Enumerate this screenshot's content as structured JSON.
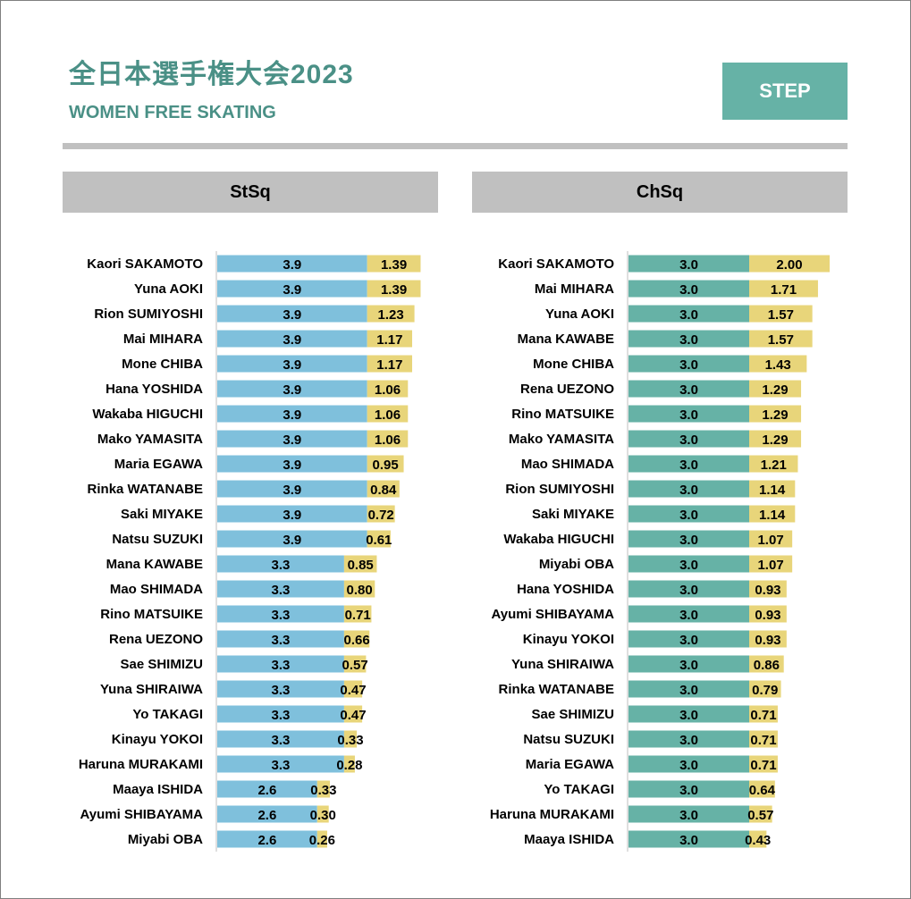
{
  "header": {
    "title": "全日本選手権大会2023",
    "subtitle": "WOMEN FREE SKATING",
    "badge": "STEP"
  },
  "colors": {
    "accent": "#66b2a6",
    "title": "#4a9086",
    "stsq_base": "#7fc0dc",
    "chsq_base": "#66b2a6",
    "goe": "#e8d57a",
    "header_bg": "#c0c0c0"
  },
  "chart_data": [
    {
      "type": "bar",
      "orientation": "horizontal",
      "stacked": true,
      "title": "StSq",
      "series": [
        {
          "name": "base"
        },
        {
          "name": "goe"
        }
      ],
      "rows": [
        {
          "name": "Kaori SAKAMOTO",
          "base": "3.9",
          "goe": "1.39"
        },
        {
          "name": "Yuna  AOKI",
          "base": "3.9",
          "goe": "1.39"
        },
        {
          "name": "Rion SUMIYOSHI",
          "base": "3.9",
          "goe": "1.23"
        },
        {
          "name": "Mai MIHARA",
          "base": "3.9",
          "goe": "1.17"
        },
        {
          "name": "Mone CHIBA",
          "base": "3.9",
          "goe": "1.17"
        },
        {
          "name": "Hana YOSHIDA",
          "base": "3.9",
          "goe": "1.06"
        },
        {
          "name": "Wakaba HIGUCHI",
          "base": "3.9",
          "goe": "1.06"
        },
        {
          "name": "Mako YAMASITA",
          "base": "3.9",
          "goe": "1.06"
        },
        {
          "name": "Maria EGAWA",
          "base": "3.9",
          "goe": "0.95"
        },
        {
          "name": "Rinka WATANABE",
          "base": "3.9",
          "goe": "0.84"
        },
        {
          "name": "Saki MIYAKE",
          "base": "3.9",
          "goe": "0.72"
        },
        {
          "name": "Natsu SUZUKI",
          "base": "3.9",
          "goe": "0.61"
        },
        {
          "name": "Mana KAWABE",
          "base": "3.3",
          "goe": "0.85"
        },
        {
          "name": "Mao SHIMADA",
          "base": "3.3",
          "goe": "0.80"
        },
        {
          "name": "Rino MATSUIKE",
          "base": "3.3",
          "goe": "0.71"
        },
        {
          "name": "Rena UEZONO",
          "base": "3.3",
          "goe": "0.66"
        },
        {
          "name": "Sae SHIMIZU",
          "base": "3.3",
          "goe": "0.57"
        },
        {
          "name": "Yuna SHIRAIWA",
          "base": "3.3",
          "goe": "0.47"
        },
        {
          "name": "Yo  TAKAGI",
          "base": "3.3",
          "goe": "0.47"
        },
        {
          "name": "Kinayu YOKOI",
          "base": "3.3",
          "goe": "0.33"
        },
        {
          "name": "Haruna MURAKAMI",
          "base": "3.3",
          "goe": "0.28"
        },
        {
          "name": "Maaya ISHIDA",
          "base": "2.6",
          "goe": "0.33"
        },
        {
          "name": "Ayumi SHIBAYAMA",
          "base": "2.6",
          "goe": "0.30"
        },
        {
          "name": "Miyabi OBA",
          "base": "2.6",
          "goe": "0.26"
        }
      ]
    },
    {
      "type": "bar",
      "orientation": "horizontal",
      "stacked": true,
      "title": "ChSq",
      "series": [
        {
          "name": "base"
        },
        {
          "name": "goe"
        }
      ],
      "rows": [
        {
          "name": "Kaori SAKAMOTO",
          "base": "3.0",
          "goe": "2.00"
        },
        {
          "name": "Mai MIHARA",
          "base": "3.0",
          "goe": "1.71"
        },
        {
          "name": "Yuna  AOKI",
          "base": "3.0",
          "goe": "1.57"
        },
        {
          "name": "Mana KAWABE",
          "base": "3.0",
          "goe": "1.57"
        },
        {
          "name": "Mone CHIBA",
          "base": "3.0",
          "goe": "1.43"
        },
        {
          "name": "Rena UEZONO",
          "base": "3.0",
          "goe": "1.29"
        },
        {
          "name": "Rino MATSUIKE",
          "base": "3.0",
          "goe": "1.29"
        },
        {
          "name": "Mako YAMASITA",
          "base": "3.0",
          "goe": "1.29"
        },
        {
          "name": "Mao SHIMADA",
          "base": "3.0",
          "goe": "1.21"
        },
        {
          "name": "Rion SUMIYOSHI",
          "base": "3.0",
          "goe": "1.14"
        },
        {
          "name": "Saki MIYAKE",
          "base": "3.0",
          "goe": "1.14"
        },
        {
          "name": "Wakaba HIGUCHI",
          "base": "3.0",
          "goe": "1.07"
        },
        {
          "name": "Miyabi OBA",
          "base": "3.0",
          "goe": "1.07"
        },
        {
          "name": "Hana YOSHIDA",
          "base": "3.0",
          "goe": "0.93"
        },
        {
          "name": "Ayumi SHIBAYAMA",
          "base": "3.0",
          "goe": "0.93"
        },
        {
          "name": "Kinayu YOKOI",
          "base": "3.0",
          "goe": "0.93"
        },
        {
          "name": "Yuna SHIRAIWA",
          "base": "3.0",
          "goe": "0.86"
        },
        {
          "name": "Rinka WATANABE",
          "base": "3.0",
          "goe": "0.79"
        },
        {
          "name": "Sae SHIMIZU",
          "base": "3.0",
          "goe": "0.71"
        },
        {
          "name": "Natsu SUZUKI",
          "base": "3.0",
          "goe": "0.71"
        },
        {
          "name": "Maria EGAWA",
          "base": "3.0",
          "goe": "0.71"
        },
        {
          "name": "Yo  TAKAGI",
          "base": "3.0",
          "goe": "0.64"
        },
        {
          "name": "Haruna MURAKAMI",
          "base": "3.0",
          "goe": "0.57"
        },
        {
          "name": "Maaya ISHIDA",
          "base": "3.0",
          "goe": "0.43"
        }
      ]
    }
  ]
}
